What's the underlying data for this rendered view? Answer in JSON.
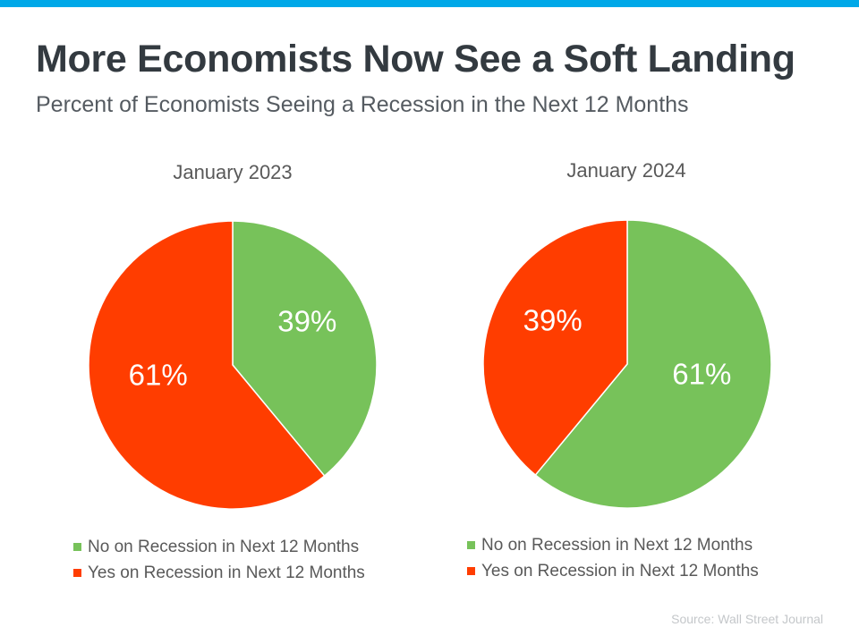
{
  "title": "More Economists Now See a Soft Landing",
  "subtitle": "Percent of Economists Seeing a Recession in the Next 12 Months",
  "source": "Source: Wall Street Journal",
  "colors": {
    "accent_bar": "#00a8e8",
    "no_recession": "#77c25a",
    "yes_recession": "#ff3d00"
  },
  "chart_data": [
    {
      "type": "pie",
      "title": "January 2023",
      "slices": [
        {
          "label": "No on Recession in Next 12 Months",
          "value": 39,
          "display": "39%",
          "color": "#77c25a"
        },
        {
          "label": "Yes on Recession in Next 12 Months",
          "value": 61,
          "display": "61%",
          "color": "#ff3d00"
        }
      ],
      "legend": [
        "No on Recession in Next 12 Months",
        "Yes on Recession in Next 12 Months"
      ],
      "legend_position": "bottom"
    },
    {
      "type": "pie",
      "title": "January 2024",
      "slices": [
        {
          "label": "No on Recession in Next 12 Months",
          "value": 61,
          "display": "61%",
          "color": "#77c25a"
        },
        {
          "label": "Yes on Recession in Next 12 Months",
          "value": 39,
          "display": "39%",
          "color": "#ff3d00"
        }
      ],
      "legend": [
        "No on Recession in Next 12 Months",
        "Yes on Recession in Next 12 Months"
      ],
      "legend_position": "bottom"
    }
  ]
}
